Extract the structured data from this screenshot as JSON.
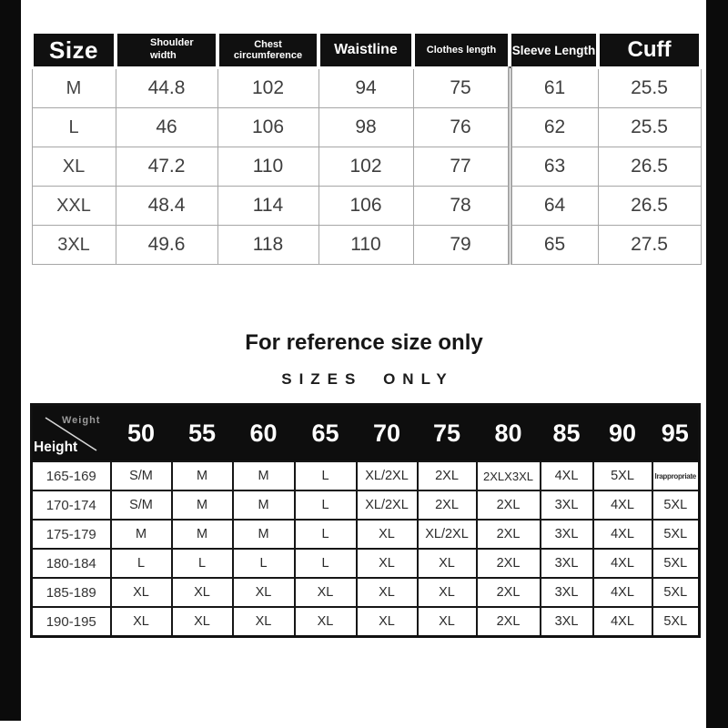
{
  "colors": {
    "edge_bar": "#0b0b0b",
    "header_bg": "#101010",
    "header_text": "#ffffff",
    "size_table_grid": "#a6a6a6",
    "fit_table_grid": "#161616",
    "body_text": "#3e3e3e"
  },
  "size_table": {
    "headers": [
      "Size",
      "Shoulder width",
      "Chest circumference",
      "Waistline",
      "Clothes length",
      "Sleeve Length",
      "Cuff"
    ],
    "rows": [
      [
        "M",
        "44.8",
        "102",
        "94",
        "75",
        "61",
        "25.5"
      ],
      [
        "L",
        "46",
        "106",
        "98",
        "76",
        "62",
        "25.5"
      ],
      [
        "XL",
        "47.2",
        "110",
        "102",
        "77",
        "63",
        "26.5"
      ],
      [
        "XXL",
        "48.4",
        "114",
        "106",
        "78",
        "64",
        "26.5"
      ],
      [
        "3XL",
        "49.6",
        "118",
        "110",
        "79",
        "65",
        "27.5"
      ]
    ]
  },
  "notes": {
    "title": "For reference size only",
    "subtitle": "SIZES ONLY"
  },
  "fit_table": {
    "corner": {
      "top_label": "Weight",
      "bottom_label": "Height"
    },
    "weights": [
      "50",
      "55",
      "60",
      "65",
      "70",
      "75",
      "80",
      "85",
      "90",
      "95"
    ],
    "rows": [
      {
        "height": "165-169",
        "cells": [
          "S/M",
          "M",
          "M",
          "L",
          "XL/2XL",
          "2XL",
          "2XLX3XL",
          "4XL",
          "5XL",
          "Irappropriate"
        ]
      },
      {
        "height": "170-174",
        "cells": [
          "S/M",
          "M",
          "M",
          "L",
          "XL/2XL",
          "2XL",
          "2XL",
          "3XL",
          "4XL",
          "5XL"
        ]
      },
      {
        "height": "175-179",
        "cells": [
          "M",
          "M",
          "M",
          "L",
          "XL",
          "XL/2XL",
          "2XL",
          "3XL",
          "4XL",
          "5XL"
        ]
      },
      {
        "height": "180-184",
        "cells": [
          "L",
          "L",
          "L",
          "L",
          "XL",
          "XL",
          "2XL",
          "3XL",
          "4XL",
          "5XL"
        ]
      },
      {
        "height": "185-189",
        "cells": [
          "XL",
          "XL",
          "XL",
          "XL",
          "XL",
          "XL",
          "2XL",
          "3XL",
          "4XL",
          "5XL"
        ]
      },
      {
        "height": "190-195",
        "cells": [
          "XL",
          "XL",
          "XL",
          "XL",
          "XL",
          "XL",
          "2XL",
          "3XL",
          "4XL",
          "5XL"
        ]
      }
    ]
  }
}
